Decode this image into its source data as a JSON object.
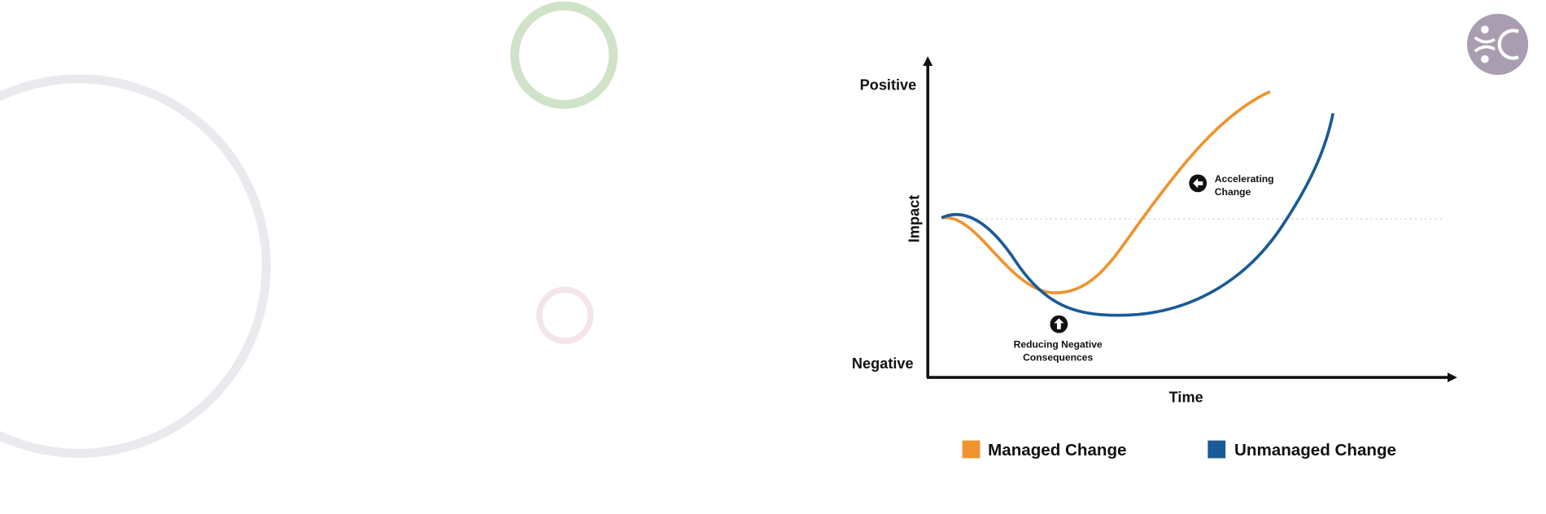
{
  "diagram": {
    "y_axis": {
      "top_label": "Positive",
      "bottom_label": "Negative",
      "title": "Impact"
    },
    "x_axis": {
      "title": "Time"
    },
    "annotations": [
      {
        "lines": [
          "Accelerating",
          "Change"
        ]
      },
      {
        "lines": [
          "Reducing Negative",
          "Consequences"
        ]
      }
    ],
    "legend": [
      {
        "name": "Managed Change",
        "color": "#f0922e"
      },
      {
        "name": "Unmanaged Change",
        "color": "#1a5a96"
      }
    ]
  }
}
